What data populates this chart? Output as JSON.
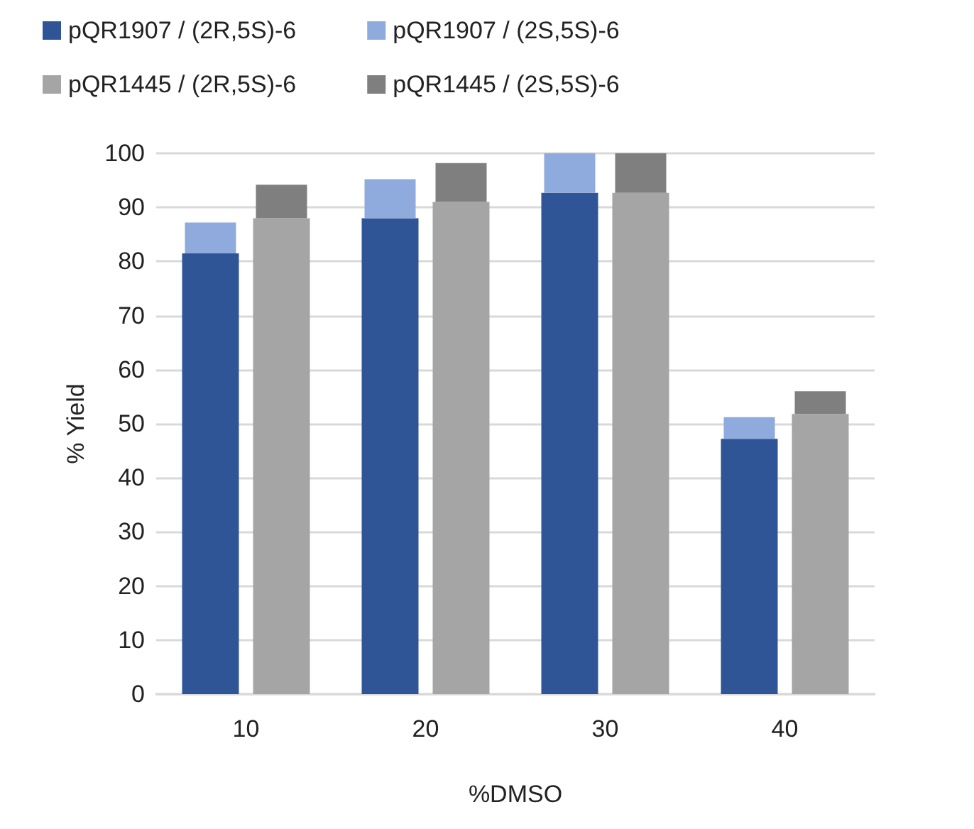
{
  "chart_data": {
    "type": "bar",
    "xlabel": "%DMSO",
    "ylabel": "% Yield",
    "categories": [
      "10",
      "20",
      "30",
      "40"
    ],
    "series": [
      {
        "name": "pQR1907 / (2R,5S)-6",
        "color": "#2f5597",
        "values": [
          81.5,
          88,
          92.7,
          47.2
        ]
      },
      {
        "name": "pQR1907 / (2S,5S)-6",
        "color": "#8faadc",
        "values": [
          5.7,
          7.2,
          7.3,
          4
        ],
        "base": [
          81.5,
          88,
          92.7,
          47.2
        ]
      },
      {
        "name": "pQR1445 / (2R,5S)-6",
        "color": "#a5a5a5",
        "values": [
          88,
          91,
          92.7,
          51.8
        ]
      },
      {
        "name": "pQR1445 / (2S,5S)-6",
        "color": "#7f7f7f",
        "values": [
          6.2,
          7.2,
          7.3,
          4.2
        ],
        "base": [
          88,
          91,
          92.7,
          51.8
        ]
      }
    ],
    "ylim": [
      0,
      100
    ],
    "yticks": [
      0,
      10,
      20,
      30,
      40,
      50,
      60,
      70,
      80,
      90,
      100
    ],
    "grid": "y",
    "legend": "top"
  }
}
